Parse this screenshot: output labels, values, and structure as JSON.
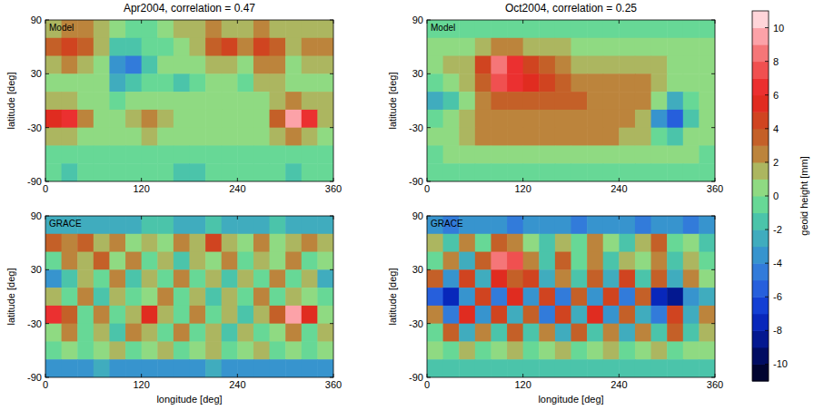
{
  "chart_data": [
    {
      "type": "heatmap",
      "title": "Apr2004, correlation = 0.47",
      "label": "Model",
      "y_label": "latitude [deg]",
      "x": [
        10,
        30,
        50,
        70,
        90,
        110,
        130,
        150,
        170,
        190,
        210,
        230,
        250,
        270,
        290,
        310,
        330,
        350
      ],
      "y": [
        80,
        60,
        40,
        20,
        0,
        -20,
        -40,
        -60,
        -80
      ],
      "xlim": [
        0,
        360
      ],
      "ylim": [
        -90,
        90
      ],
      "xticks": [
        0,
        120,
        240,
        360
      ],
      "yticks": [
        -90,
        -30,
        30,
        90
      ],
      "cells": [
        [
          1,
          2,
          2,
          1,
          0,
          -1,
          -1,
          0,
          1,
          1,
          2,
          1,
          1,
          2,
          1,
          1,
          1,
          1
        ],
        [
          3,
          4,
          3,
          1,
          -2,
          -2,
          -1,
          -1,
          0,
          1,
          3,
          4,
          2,
          4,
          3,
          1,
          2,
          2
        ],
        [
          1,
          2,
          1,
          0,
          -4,
          -5,
          -2,
          0,
          0,
          0,
          1,
          1,
          0,
          2,
          2,
          0,
          1,
          1
        ],
        [
          0,
          0,
          0,
          0,
          -3,
          -2,
          -1,
          -1,
          -2,
          -1,
          0,
          0,
          -1,
          1,
          1,
          0,
          0,
          0
        ],
        [
          1,
          1,
          0,
          0,
          -1,
          0,
          0,
          0,
          0,
          0,
          0,
          0,
          0,
          0,
          1,
          2,
          1,
          1
        ],
        [
          5,
          6,
          2,
          0,
          0,
          1,
          2,
          1,
          0,
          0,
          0,
          0,
          0,
          0,
          3,
          9,
          6,
          1
        ],
        [
          1,
          1,
          0,
          0,
          0,
          0,
          1,
          0,
          0,
          0,
          0,
          0,
          0,
          0,
          1,
          2,
          1,
          0
        ],
        [
          -1,
          -1,
          -1,
          -1,
          -1,
          -1,
          -1,
          -1,
          -1,
          -1,
          -1,
          -1,
          -1,
          -1,
          -1,
          -1,
          -1,
          -1
        ],
        [
          -1,
          -2,
          -1,
          -1,
          -1,
          -1,
          -1,
          -1,
          -2,
          -2,
          -1,
          -1,
          -1,
          -1,
          -1,
          -2,
          -1,
          -1
        ]
      ]
    },
    {
      "type": "heatmap",
      "title": "Oct2004, correlation = 0.25",
      "label": "Model",
      "y_label": "latitude [deg]",
      "x": [
        10,
        30,
        50,
        70,
        90,
        110,
        130,
        150,
        170,
        190,
        210,
        230,
        250,
        270,
        290,
        310,
        330,
        350
      ],
      "y": [
        80,
        60,
        40,
        20,
        0,
        -20,
        -40,
        -60,
        -80
      ],
      "xlim": [
        0,
        360
      ],
      "ylim": [
        -90,
        90
      ],
      "xticks": [
        0,
        120,
        240,
        360
      ],
      "yticks": [
        -90,
        -30,
        30,
        90
      ],
      "cells": [
        [
          -1,
          -1,
          -1,
          -1,
          -1,
          -1,
          -1,
          -1,
          -1,
          -1,
          -1,
          -1,
          -1,
          -1,
          -1,
          -1,
          -1,
          -1
        ],
        [
          0,
          0,
          0,
          1,
          2,
          2,
          1,
          1,
          1,
          0,
          0,
          0,
          0,
          0,
          0,
          0,
          0,
          0
        ],
        [
          0,
          1,
          1,
          4,
          8,
          6,
          4,
          3,
          2,
          1,
          1,
          1,
          1,
          1,
          1,
          0,
          0,
          0
        ],
        [
          -1,
          0,
          1,
          3,
          7,
          6,
          5,
          4,
          3,
          2,
          2,
          2,
          2,
          2,
          1,
          0,
          0,
          0
        ],
        [
          -3,
          -2,
          0,
          2,
          3,
          3,
          3,
          3,
          3,
          3,
          2,
          2,
          2,
          2,
          0,
          -3,
          -1,
          0
        ],
        [
          -1,
          0,
          1,
          2,
          2,
          2,
          2,
          2,
          2,
          2,
          2,
          2,
          2,
          1,
          -4,
          -6,
          -2,
          0
        ],
        [
          0,
          0,
          1,
          2,
          2,
          2,
          2,
          2,
          2,
          2,
          2,
          2,
          1,
          1,
          -1,
          -2,
          0,
          0
        ],
        [
          -1,
          0,
          0,
          0,
          0,
          0,
          0,
          0,
          0,
          0,
          0,
          0,
          0,
          0,
          0,
          0,
          0,
          -1
        ],
        [
          -1,
          -1,
          -1,
          -1,
          -1,
          -1,
          -1,
          -1,
          -1,
          -1,
          -1,
          -1,
          -1,
          -1,
          -1,
          -1,
          -1,
          -1
        ]
      ]
    },
    {
      "type": "heatmap",
      "label": "GRACE",
      "x_label": "longitude [deg]",
      "y_label": "latitude [deg]",
      "x": [
        10,
        30,
        50,
        70,
        90,
        110,
        130,
        150,
        170,
        190,
        210,
        230,
        250,
        270,
        290,
        310,
        330,
        350
      ],
      "y": [
        80,
        60,
        40,
        20,
        0,
        -20,
        -40,
        -60,
        -80
      ],
      "xlim": [
        0,
        360
      ],
      "ylim": [
        -90,
        90
      ],
      "xticks": [
        0,
        120,
        240,
        360
      ],
      "yticks": [
        -90,
        -30,
        30,
        90
      ],
      "cells": [
        [
          -3,
          -3,
          -3,
          -3,
          -3,
          -3,
          -2,
          -2,
          -3,
          -3,
          -2,
          -3,
          -3,
          -3,
          -2,
          -3,
          -3,
          -3
        ],
        [
          3,
          2,
          3,
          1,
          2,
          0,
          1,
          0,
          2,
          1,
          4,
          1,
          0,
          2,
          0,
          1,
          2,
          1
        ],
        [
          -1,
          2,
          1,
          3,
          0,
          2,
          -1,
          1,
          -2,
          1,
          0,
          2,
          -1,
          1,
          0,
          2,
          -1,
          0
        ],
        [
          -4,
          -2,
          1,
          -1,
          2,
          -2,
          1,
          -1,
          2,
          -1,
          1,
          -2,
          1,
          -1,
          2,
          -1,
          1,
          -3
        ],
        [
          1,
          -1,
          2,
          -2,
          1,
          -1,
          0,
          2,
          -1,
          1,
          -2,
          1,
          -1,
          2,
          -1,
          1,
          0,
          -1
        ],
        [
          6,
          3,
          -1,
          2,
          -1,
          1,
          5,
          1,
          -1,
          2,
          -1,
          1,
          -2,
          1,
          3,
          9,
          5,
          0
        ],
        [
          0,
          2,
          -1,
          1,
          -2,
          2,
          1,
          -1,
          2,
          -1,
          1,
          -2,
          1,
          -1,
          0,
          2,
          -1,
          1
        ],
        [
          -1,
          0,
          -1,
          0,
          1,
          -1,
          0,
          1,
          -1,
          0,
          1,
          -1,
          0,
          1,
          -1,
          0,
          -1,
          0
        ],
        [
          -4,
          -4,
          -4,
          -3,
          -4,
          -4,
          -4,
          -4,
          -4,
          -4,
          -3,
          -4,
          -4,
          -4,
          -4,
          -4,
          -4,
          -4
        ]
      ]
    },
    {
      "type": "heatmap",
      "label": "GRACE",
      "x_label": "longitude [deg]",
      "y_label": "latitude [deg]",
      "x": [
        10,
        30,
        50,
        70,
        90,
        110,
        130,
        150,
        170,
        190,
        210,
        230,
        250,
        270,
        290,
        310,
        330,
        350
      ],
      "y": [
        80,
        60,
        40,
        20,
        0,
        -20,
        -40,
        -60,
        -80
      ],
      "xlim": [
        0,
        360
      ],
      "ylim": [
        -90,
        90
      ],
      "xticks": [
        0,
        120,
        240,
        360
      ],
      "yticks": [
        -90,
        -30,
        30,
        90
      ],
      "cells": [
        [
          -4,
          -5,
          -4,
          -4,
          -4,
          -5,
          -4,
          -4,
          -4,
          -5,
          -4,
          -4,
          -4,
          -5,
          -4,
          -4,
          -5,
          -4
        ],
        [
          1,
          -2,
          2,
          -1,
          3,
          2,
          0,
          -2,
          1,
          -1,
          2,
          0,
          -2,
          1,
          3,
          -1,
          0,
          -2
        ],
        [
          -1,
          2,
          -3,
          3,
          8,
          7,
          2,
          -2,
          3,
          -1,
          2,
          -2,
          1,
          0,
          2,
          -2,
          1,
          -1
        ],
        [
          3,
          -4,
          4,
          -3,
          5,
          3,
          4,
          -3,
          2,
          -2,
          3,
          -3,
          4,
          -2,
          3,
          -3,
          2,
          0
        ],
        [
          -6,
          -8,
          -4,
          4,
          -5,
          5,
          -4,
          4,
          -5,
          3,
          -4,
          4,
          -5,
          3,
          -8,
          -9,
          -4,
          -3
        ],
        [
          2,
          -5,
          5,
          -4,
          4,
          -3,
          3,
          -5,
          4,
          -3,
          5,
          -4,
          3,
          -3,
          -5,
          4,
          -3,
          2
        ],
        [
          -1,
          3,
          -3,
          2,
          -2,
          3,
          -2,
          2,
          -3,
          3,
          -2,
          2,
          -3,
          2,
          -2,
          3,
          -2,
          1
        ],
        [
          0,
          -1,
          1,
          -1,
          0,
          1,
          -1,
          0,
          1,
          -1,
          0,
          1,
          -1,
          0,
          1,
          -1,
          0,
          0
        ],
        [
          -2,
          -2,
          -2,
          -2,
          -2,
          -2,
          -2,
          -2,
          -2,
          -2,
          -2,
          -2,
          -2,
          -2,
          -2,
          -2,
          -2,
          -2
        ]
      ]
    }
  ],
  "colorbar": {
    "range": [
      -11,
      11
    ],
    "ticks": [
      -10,
      -8,
      -6,
      -4,
      -2,
      0,
      2,
      4,
      6,
      8,
      10
    ],
    "label": "geoid height [mm]"
  }
}
